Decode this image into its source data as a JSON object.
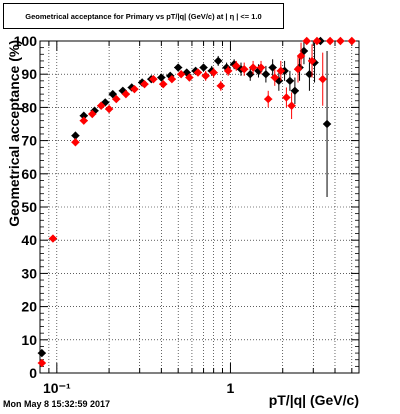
{
  "header": {
    "title": "Geometrical acceptance for Primary vs pT/|q| (GeV/c) at | η | <= 1.0"
  },
  "footer": {
    "timestamp": "Mon May  8 15:32:59 2017"
  },
  "chart_data": {
    "type": "scatter",
    "title": "Geometrical acceptance for Primary vs pT/|q| (GeV/c) at | η | <= 1.0",
    "xlabel": "pT/|q| (GeV/c)",
    "ylabel": "Geometrical acceptance (%)",
    "xscale": "log",
    "xlim": [
      0.08,
      5.5
    ],
    "ylim": [
      0,
      100
    ],
    "grid": true,
    "y_ticks": [
      0,
      10,
      20,
      30,
      40,
      50,
      60,
      70,
      80,
      90,
      100
    ],
    "x_tick_labels": [
      {
        "value": 0.1,
        "label": "10⁻¹"
      },
      {
        "value": 1,
        "label": "1"
      }
    ],
    "colors": {
      "series_black": "#000000",
      "series_red": "#ff0000",
      "grid": "#000000",
      "frame": "#000000"
    },
    "series": [
      {
        "color": "#000000",
        "marker": "diamond",
        "points": [
          {
            "x": 0.082,
            "y": 6,
            "err": 1
          },
          {
            "x": 0.128,
            "y": 71.5,
            "err": 1
          },
          {
            "x": 0.143,
            "y": 77.5,
            "err": 1
          },
          {
            "x": 0.165,
            "y": 79,
            "err": 1
          },
          {
            "x": 0.19,
            "y": 81.5,
            "err": 1
          },
          {
            "x": 0.21,
            "y": 84,
            "err": 1
          },
          {
            "x": 0.24,
            "y": 85,
            "err": 1
          },
          {
            "x": 0.27,
            "y": 86,
            "err": 1
          },
          {
            "x": 0.31,
            "y": 87.5,
            "err": 1
          },
          {
            "x": 0.35,
            "y": 88.5,
            "err": 1
          },
          {
            "x": 0.4,
            "y": 89,
            "err": 1
          },
          {
            "x": 0.45,
            "y": 89.5,
            "err": 1
          },
          {
            "x": 0.5,
            "y": 92,
            "err": 1
          },
          {
            "x": 0.56,
            "y": 90.5,
            "err": 1
          },
          {
            "x": 0.63,
            "y": 91,
            "err": 1
          },
          {
            "x": 0.7,
            "y": 92,
            "err": 1
          },
          {
            "x": 0.78,
            "y": 91,
            "err": 1.5
          },
          {
            "x": 0.85,
            "y": 94,
            "err": 1.5
          },
          {
            "x": 0.95,
            "y": 92,
            "err": 1.5
          },
          {
            "x": 1.05,
            "y": 93,
            "err": 1.5
          },
          {
            "x": 1.15,
            "y": 91.5,
            "err": 2
          },
          {
            "x": 1.3,
            "y": 90,
            "err": 2
          },
          {
            "x": 1.45,
            "y": 91,
            "err": 2
          },
          {
            "x": 1.6,
            "y": 90,
            "err": 2.5
          },
          {
            "x": 1.75,
            "y": 92,
            "err": 2.5
          },
          {
            "x": 1.9,
            "y": 88,
            "err": 3
          },
          {
            "x": 2.05,
            "y": 91,
            "err": 3
          },
          {
            "x": 2.2,
            "y": 88,
            "err": 3
          },
          {
            "x": 2.35,
            "y": 85,
            "err": 4
          },
          {
            "x": 2.5,
            "y": 92,
            "err": 4
          },
          {
            "x": 2.65,
            "y": 97,
            "err": 4
          },
          {
            "x": 2.85,
            "y": 90,
            "err": 5
          },
          {
            "x": 3.05,
            "y": 93.5,
            "err": 6
          },
          {
            "x": 3.3,
            "y": 100,
            "err": 0
          },
          {
            "x": 3.6,
            "y": 75,
            "err": 22
          }
        ]
      },
      {
        "color": "#ff0000",
        "marker": "diamond",
        "points": [
          {
            "x": 0.082,
            "y": 3,
            "err": 1
          },
          {
            "x": 0.095,
            "y": 40.5,
            "err": 1
          },
          {
            "x": 0.128,
            "y": 69.5,
            "err": 1
          },
          {
            "x": 0.143,
            "y": 76,
            "err": 1
          },
          {
            "x": 0.16,
            "y": 78,
            "err": 1
          },
          {
            "x": 0.18,
            "y": 80.5,
            "err": 1
          },
          {
            "x": 0.2,
            "y": 79.5,
            "err": 1
          },
          {
            "x": 0.22,
            "y": 82.5,
            "err": 1
          },
          {
            "x": 0.25,
            "y": 84,
            "err": 1
          },
          {
            "x": 0.28,
            "y": 85.5,
            "err": 1
          },
          {
            "x": 0.32,
            "y": 87,
            "err": 1
          },
          {
            "x": 0.36,
            "y": 88.5,
            "err": 1
          },
          {
            "x": 0.41,
            "y": 87,
            "err": 1
          },
          {
            "x": 0.46,
            "y": 88.5,
            "err": 1
          },
          {
            "x": 0.52,
            "y": 90,
            "err": 1
          },
          {
            "x": 0.58,
            "y": 89,
            "err": 1
          },
          {
            "x": 0.65,
            "y": 90.5,
            "err": 1
          },
          {
            "x": 0.72,
            "y": 89.5,
            "err": 1.5
          },
          {
            "x": 0.8,
            "y": 90.5,
            "err": 1.5
          },
          {
            "x": 0.88,
            "y": 86.5,
            "err": 1.5
          },
          {
            "x": 0.97,
            "y": 91,
            "err": 1.5
          },
          {
            "x": 1.08,
            "y": 92.5,
            "err": 1.5
          },
          {
            "x": 1.2,
            "y": 91.5,
            "err": 2
          },
          {
            "x": 1.35,
            "y": 92,
            "err": 2
          },
          {
            "x": 1.5,
            "y": 92,
            "err": 2
          },
          {
            "x": 1.65,
            "y": 82.5,
            "err": 2.5
          },
          {
            "x": 1.8,
            "y": 89,
            "err": 2.5
          },
          {
            "x": 1.95,
            "y": 91,
            "err": 3
          },
          {
            "x": 2.1,
            "y": 83,
            "err": 3
          },
          {
            "x": 2.25,
            "y": 80.5,
            "err": 4
          },
          {
            "x": 2.45,
            "y": 91.5,
            "err": 4
          },
          {
            "x": 2.55,
            "y": 95.5,
            "err": 4
          },
          {
            "x": 2.75,
            "y": 100,
            "err": 0
          },
          {
            "x": 2.95,
            "y": 94,
            "err": 5
          },
          {
            "x": 3.15,
            "y": 100,
            "err": 0
          },
          {
            "x": 3.4,
            "y": 88.5,
            "err": 8
          },
          {
            "x": 3.75,
            "y": 100,
            "err": 0
          },
          {
            "x": 4.3,
            "y": 100,
            "err": 0
          },
          {
            "x": 5.0,
            "y": 100,
            "err": 0
          }
        ]
      }
    ]
  }
}
